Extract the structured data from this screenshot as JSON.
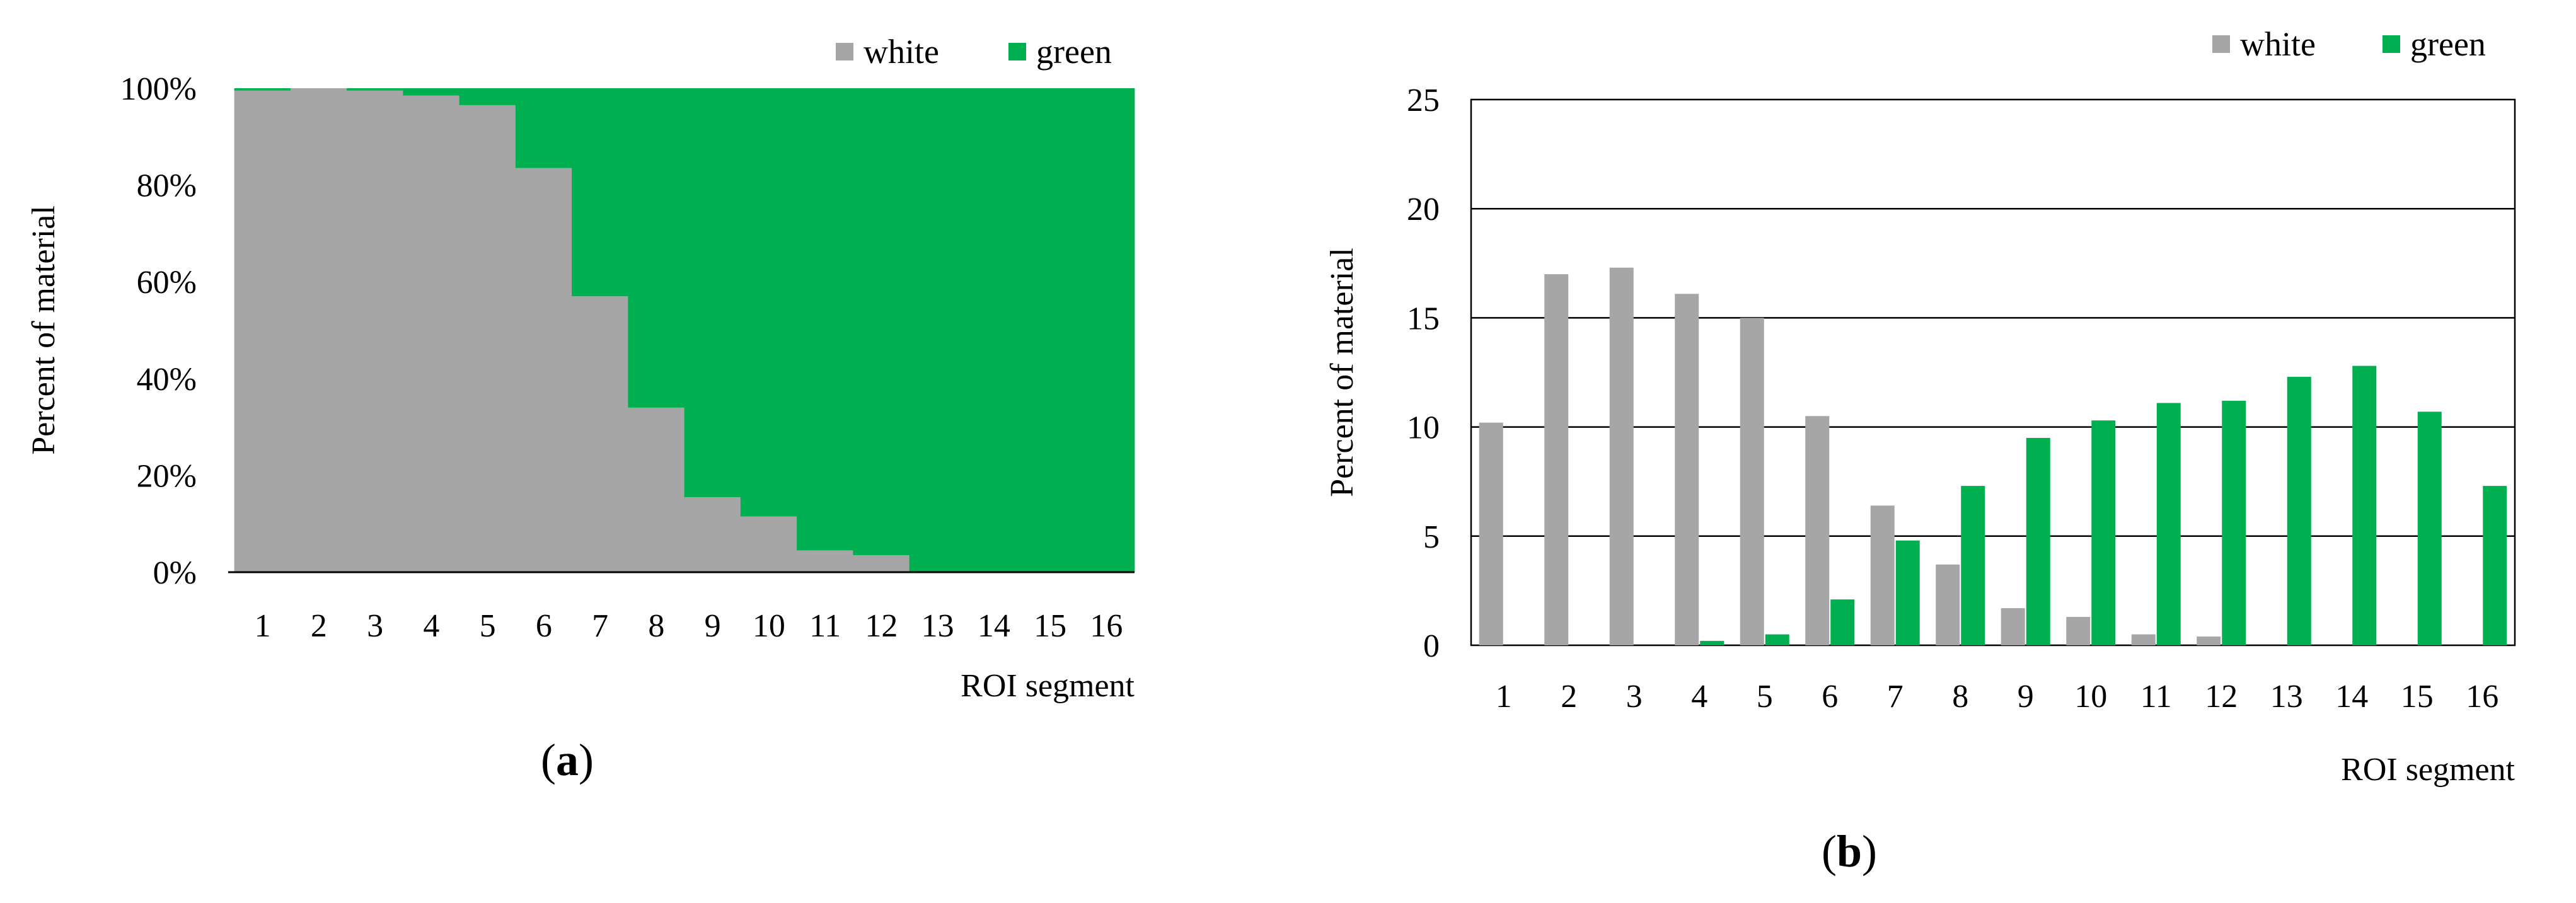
{
  "chart_data": [
    {
      "type": "bar",
      "stacked": true,
      "percent_stacked": true,
      "panel_label": "a",
      "categories": [
        "1",
        "2",
        "3",
        "4",
        "5",
        "6",
        "7",
        "8",
        "9",
        "10",
        "11",
        "12",
        "13",
        "14",
        "15",
        "16"
      ],
      "series": [
        {
          "name": "white",
          "color": "#a6a6a6",
          "values": [
            99.5,
            100,
            99.5,
            98.5,
            96.5,
            83.5,
            57,
            34,
            15.5,
            11.5,
            4.5,
            3.5,
            0,
            0,
            0,
            0
          ]
        },
        {
          "name": "green",
          "color": "#00b050",
          "values": [
            0.5,
            0,
            0.5,
            1.5,
            3.5,
            16.5,
            43,
            66,
            84.5,
            88.5,
            95.5,
            96.5,
            100,
            100,
            100,
            100
          ]
        }
      ],
      "xlabel": "ROI segment",
      "ylabel": "Percent of material",
      "yticks": [
        "0%",
        "20%",
        "40%",
        "60%",
        "80%",
        "100%"
      ],
      "ylim": [
        0,
        100
      ],
      "legend": "top-right",
      "grid": false
    },
    {
      "type": "bar",
      "panel_label": "b",
      "categories": [
        "1",
        "2",
        "3",
        "4",
        "5",
        "6",
        "7",
        "8",
        "9",
        "10",
        "11",
        "12",
        "13",
        "14",
        "15",
        "16"
      ],
      "series": [
        {
          "name": "white",
          "color": "#a6a6a6",
          "values": [
            10.2,
            17.0,
            17.3,
            16.1,
            15.0,
            10.5,
            6.4,
            3.7,
            1.7,
            1.3,
            0.5,
            0.4,
            0,
            0,
            0,
            0
          ]
        },
        {
          "name": "green",
          "color": "#00b050",
          "values": [
            0,
            0,
            0,
            0.2,
            0.5,
            2.1,
            4.8,
            7.3,
            9.5,
            10.3,
            11.1,
            11.2,
            12.3,
            12.8,
            10.7,
            7.3
          ]
        }
      ],
      "xlabel": "ROI segment",
      "ylabel": "Percent of material",
      "yticks": [
        "0",
        "5",
        "10",
        "15",
        "20",
        "25"
      ],
      "ylim": [
        0,
        25
      ],
      "legend": "top-right",
      "grid": true
    }
  ]
}
